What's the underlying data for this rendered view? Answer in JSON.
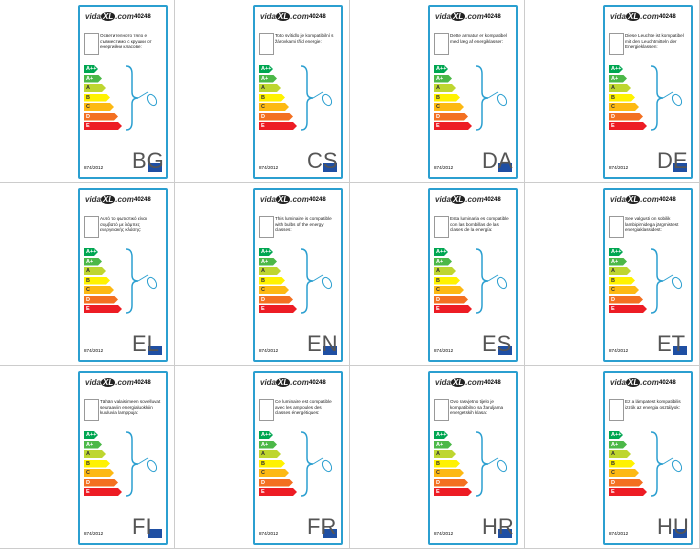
{
  "brand_prefix": "vida",
  "brand_mark": "XL",
  "brand_suffix": ".com",
  "product": "40248",
  "regulation": "874/2012",
  "classes": [
    "A++",
    "A+",
    "A",
    "B",
    "C",
    "D",
    "E"
  ],
  "panels": [
    {
      "lang": "BG",
      "text": "Осветителното тяло е съвместимо с крушки от енергийни класове:"
    },
    {
      "lang": "CS",
      "text": "Toto svítidlo je kompatibilní s žárovkami tříd energie:"
    },
    {
      "lang": "DA",
      "text": "Dette armatur er kompatibel med læg af energiklasser:"
    },
    {
      "lang": "DE",
      "text": "Diese Leuchte ist kompatibel mit den Leuchtmitteln der Energieklassen:"
    },
    {
      "lang": "EL",
      "text": "Αυτό το φωτιστικό είναι συμβατό με λάμπες ενεργειακής κλάσης:"
    },
    {
      "lang": "EN",
      "text": "This luminaire is compatible with bulbs of the energy classes:"
    },
    {
      "lang": "ES",
      "text": "Esta luminaria es compatible con las bombillas de las clases de la energía:"
    },
    {
      "lang": "ET",
      "text": "See valgusti on sobilik lambipirnidega järgmistest energiaklassidest:"
    },
    {
      "lang": "FI",
      "text": "Tähän valaisimeen sovelluvat seuraaviin energialuokkiin kuuluvia lamppuja:"
    },
    {
      "lang": "FR",
      "text": "Ce luminaire est compatible avec les ampoules des classes énergétiques:"
    },
    {
      "lang": "HR",
      "text": "Ovo rasvjetno tijelo je kompatibilno sa žaruljama energetskih klasa:"
    },
    {
      "lang": "HU",
      "text": "Ez a lámpatest kompatibilis izzók az energia osztályok:"
    }
  ]
}
